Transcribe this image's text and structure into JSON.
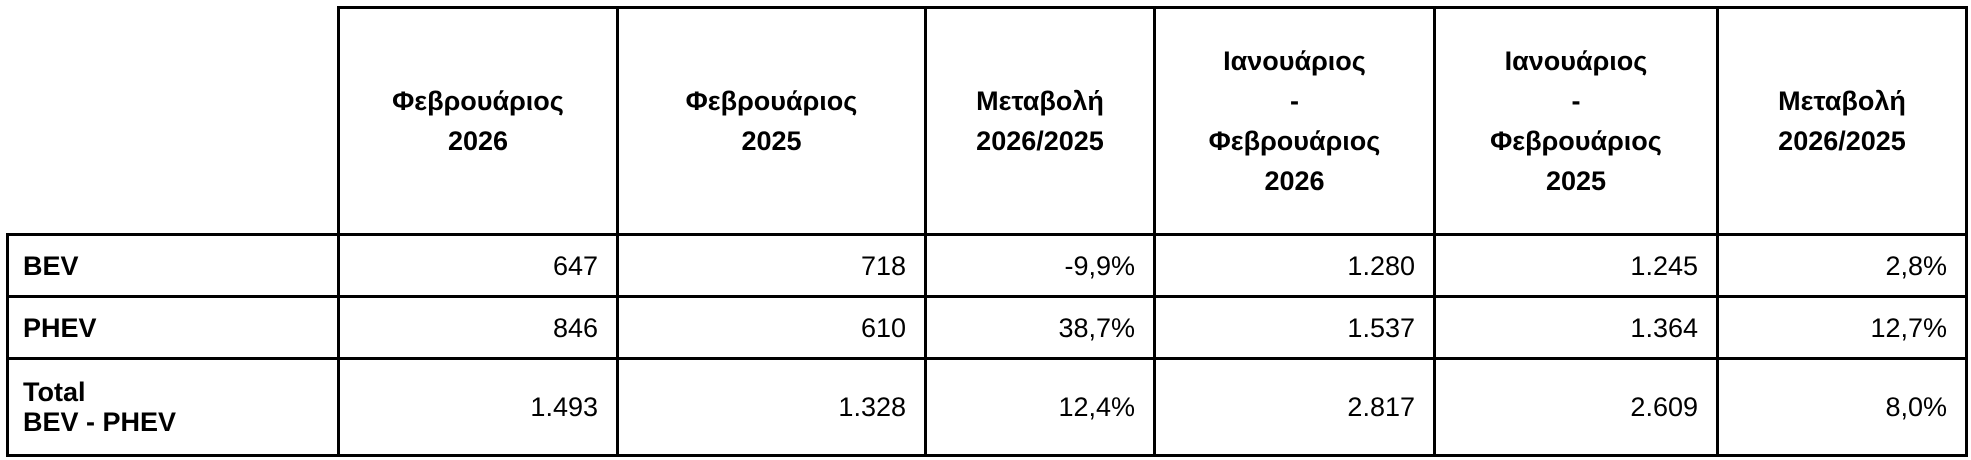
{
  "table": {
    "header": [
      [
        "Φεβρουάριος",
        "2026"
      ],
      [
        "Φεβρουάριος",
        "2025"
      ],
      [
        "Μεταβολή",
        "2026/2025"
      ],
      [
        "Ιανουάριος",
        "-",
        "Φεβρουάριος",
        "2026"
      ],
      [
        "Ιανουάριος",
        "-",
        "Φεβρουάριος",
        "2025"
      ],
      [
        "Μεταβολή",
        "2026/2025"
      ]
    ],
    "rows": [
      {
        "label": [
          "BEV"
        ],
        "cells": [
          "647",
          "718",
          "-9,9%",
          "1.280",
          "1.245",
          "2,8%"
        ]
      },
      {
        "label": [
          "PHEV"
        ],
        "cells": [
          "846",
          "610",
          "38,7%",
          "1.537",
          "1.364",
          "12,7%"
        ]
      },
      {
        "label": [
          "Total",
          "BEV - PHEV"
        ],
        "cells": [
          "1.493",
          "1.328",
          "12,4%",
          "2.817",
          "2.609",
          "8,0%"
        ]
      }
    ]
  }
}
